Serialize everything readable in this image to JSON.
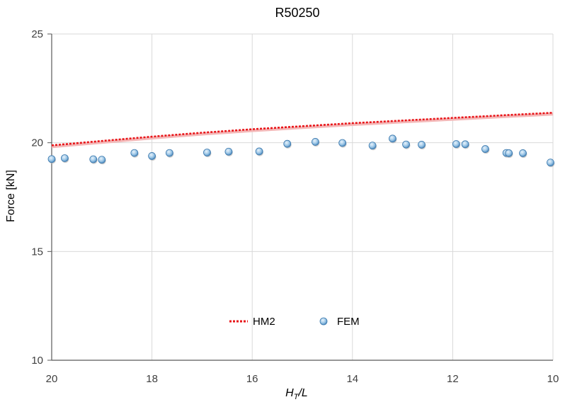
{
  "chart_data": {
    "type": "scatter",
    "title": "R50250",
    "xlabel_main": "H",
    "xlabel_sub": "T",
    "xlabel_rest": "/L",
    "ylabel": "Force [kN]",
    "xlim": [
      20,
      10
    ],
    "ylim": [
      10,
      25
    ],
    "x_reversed": true,
    "x_ticks": [
      "20",
      "18",
      "16",
      "14",
      "12",
      "10"
    ],
    "y_ticks": [
      "10",
      "15",
      "20",
      "25"
    ],
    "grid": true,
    "legend_position": "bottom-center",
    "series": [
      {
        "name": "HM2",
        "kind": "line",
        "style": "dotted",
        "color": "#e8161a",
        "x": [
          20,
          19.5,
          19,
          18.5,
          18,
          17.5,
          17,
          16.5,
          16,
          15.5,
          15,
          14.5,
          14,
          13.5,
          13,
          12.5,
          12,
          11.5,
          11,
          10.5,
          10
        ],
        "y": [
          19.88,
          19.98,
          20.08,
          20.18,
          20.28,
          20.37,
          20.46,
          20.54,
          20.62,
          20.69,
          20.76,
          20.83,
          20.9,
          20.96,
          21.02,
          21.08,
          21.14,
          21.2,
          21.26,
          21.32,
          21.38
        ]
      },
      {
        "name": "FEM",
        "kind": "marker",
        "color": "#4f93c8",
        "x": [
          20.0,
          19.74,
          19.17,
          19.0,
          18.35,
          18.0,
          17.65,
          16.9,
          16.47,
          15.86,
          15.3,
          14.74,
          14.2,
          13.6,
          13.2,
          12.93,
          12.62,
          11.93,
          11.75,
          11.35,
          10.93,
          10.88,
          10.6,
          10.05
        ],
        "y": [
          19.25,
          19.29,
          19.24,
          19.22,
          19.53,
          19.39,
          19.53,
          19.55,
          19.59,
          19.6,
          19.95,
          20.04,
          19.99,
          19.87,
          20.19,
          19.92,
          19.91,
          19.94,
          19.93,
          19.71,
          19.53,
          19.52,
          19.52,
          19.09
        ]
      }
    ]
  }
}
